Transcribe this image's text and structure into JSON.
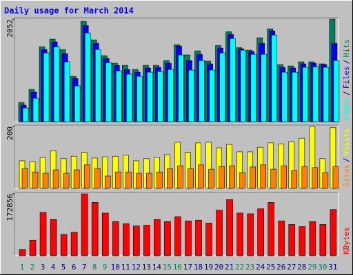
{
  "chart_data": {
    "type": "bar",
    "title": "Daily usage for March 2014",
    "categories": [
      "1",
      "2",
      "3",
      "4",
      "5",
      "6",
      "7",
      "8",
      "9",
      "10",
      "11",
      "12",
      "13",
      "14",
      "15",
      "16",
      "17",
      "18",
      "19",
      "20",
      "21",
      "22",
      "23",
      "24",
      "25",
      "26",
      "27",
      "28",
      "29",
      "30",
      "31"
    ],
    "category_colors": [
      "#00805c",
      "#00805c",
      "#000080",
      "#000080",
      "#000080",
      "#000080",
      "#000080",
      "#00805c",
      "#00805c",
      "#000080",
      "#000080",
      "#000080",
      "#000080",
      "#000080",
      "#00805c",
      "#00805c",
      "#000080",
      "#000080",
      "#000080",
      "#000080",
      "#000080",
      "#00805c",
      "#00805c",
      "#000080",
      "#000080",
      "#000080",
      "#000080",
      "#000080",
      "#00805c",
      "#00805c",
      "#000080"
    ],
    "legend_separator": "/",
    "panels": [
      {
        "ylim": [
          0,
          2052
        ],
        "yticks": [
          2052
        ],
        "legend_order": [
          2,
          1,
          0
        ],
        "series": [
          {
            "name": "Hits",
            "color": "#00805c",
            "values": [
              385,
              647,
              1501,
              1652,
              1446,
              909,
              2010,
              1638,
              1322,
              1170,
              1129,
              1047,
              1129,
              1129,
              1225,
              1542,
              1336,
              1418,
              1212,
              1528,
              1804,
              1487,
              1432,
              1680,
              1859,
              1143,
              1115,
              1198,
              1198,
              1157,
              2052
            ]
          },
          {
            "name": "Files",
            "color": "#0000ff",
            "values": [
              330,
              592,
              1446,
              1597,
              1363,
              867,
              1928,
              1570,
              1267,
              1129,
              1047,
              991,
              1074,
              1088,
              1170,
              1515,
              1225,
              1349,
              1157,
              1473,
              1749,
              1460,
              1404,
              1570,
              1818,
              1088,
              1074,
              1157,
              1170,
              1143,
              1570
            ]
          },
          {
            "name": "Pages",
            "color": "#00ffff",
            "values": [
              275,
              468,
              1377,
              1501,
              1198,
              716,
              1776,
              1446,
              1184,
              1019,
              950,
              909,
              991,
              1005,
              1047,
              1336,
              1033,
              1225,
              1033,
              1377,
              1666,
              1432,
              1349,
              1349,
              1735,
              991,
              991,
              1088,
              1101,
              1088,
              1225
            ]
          }
        ]
      },
      {
        "ylim": [
          0,
          200
        ],
        "yticks": [
          200
        ],
        "legend_order": [
          1,
          0
        ],
        "series": [
          {
            "name": "Visits",
            "color": "#ffff00",
            "values": [
              89,
              87,
              100,
              122,
              96,
              104,
              116,
              98,
              102,
              104,
              107,
              89,
              96,
              100,
              109,
              149,
              116,
              147,
              149,
              131,
              142,
              118,
              118,
              133,
              147,
              144,
              151,
              162,
              200,
              96,
              196
            ]
          },
          {
            "name": "Sites",
            "color": "#ff8000",
            "values": [
              64,
              53,
              49,
              60,
              49,
              60,
              76,
              64,
              40,
              53,
              53,
              49,
              49,
              53,
              64,
              73,
              64,
              76,
              62,
              71,
              73,
              51,
              69,
              76,
              62,
              73,
              58,
              71,
              67,
              51,
              71
            ]
          }
        ]
      },
      {
        "ylim": [
          0,
          172856
        ],
        "yticks": [
          172856
        ],
        "legend_order": [
          0
        ],
        "series": [
          {
            "name": "KBytes",
            "color": "#ff0000",
            "values": [
              17883,
              43714,
              121207,
              101337,
              59610,
              65571,
              172856,
              149016,
              119214,
              95376,
              89415,
              83454,
              85441,
              101337,
              95376,
              109284,
              97360,
              99345,
              91398,
              127168,
              156965,
              119214,
              117227,
              131139,
              149016,
              97360,
              87425,
              81461,
              95376,
              87425,
              129154
            ]
          }
        ]
      }
    ]
  }
}
